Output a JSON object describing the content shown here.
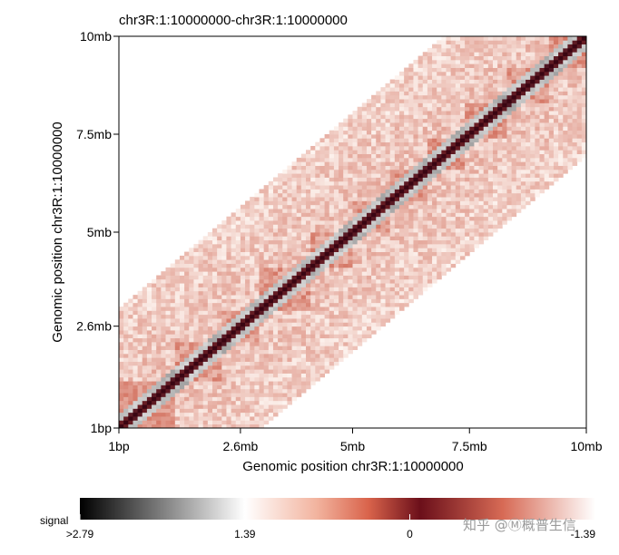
{
  "chart_data": {
    "type": "heatmap",
    "subtype": "hic-contact-map",
    "title": "chr3R:1:10000000-chr3R:1:10000000",
    "xlabel": "Genomic position chr3R:1:10000000",
    "ylabel": "Genomic position chr3R:1:10000000",
    "xlim": [
      0,
      10000000
    ],
    "ylim": [
      0,
      10000000
    ],
    "x_ticks": [
      {
        "value": 1,
        "label": "1bp"
      },
      {
        "value": 2600000,
        "label": "2.6mb"
      },
      {
        "value": 5000000,
        "label": "5mb"
      },
      {
        "value": 7500000,
        "label": "7.5mb"
      },
      {
        "value": 10000000,
        "label": "10mb"
      }
    ],
    "y_ticks": [
      {
        "value": 1,
        "label": "1bp"
      },
      {
        "value": 2600000,
        "label": "2.6mb"
      },
      {
        "value": 5000000,
        "label": "5mb"
      },
      {
        "value": 7500000,
        "label": "7.5mb"
      },
      {
        "value": 10000000,
        "label": "10mb"
      }
    ],
    "band_half_width_bp": 3000000,
    "resolution_bp": 100000,
    "colorbar": {
      "label": "signal",
      "tick_labels": [
        ">2.79",
        "1.39",
        "0",
        "-1.39"
      ],
      "tick_positions": [
        0.0,
        0.32,
        0.64,
        1.0
      ],
      "colors": [
        "#000000",
        "#ffffff",
        "#e8866a",
        "#6b0f1a",
        "#ffffff"
      ]
    }
  },
  "watermark": "知乎 @Ⓜ概普生信"
}
